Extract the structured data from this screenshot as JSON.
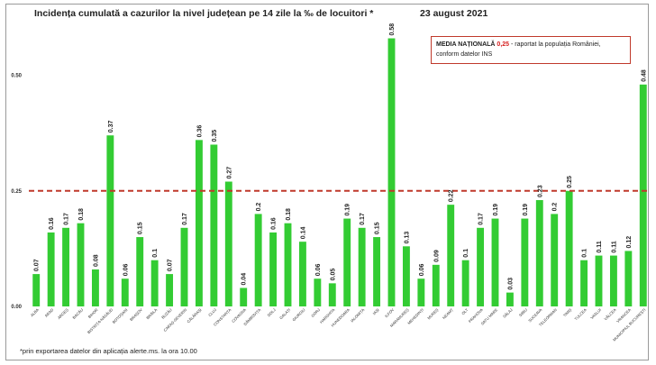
{
  "header": {
    "title": "Incidența cumulată a cazurilor la nivel județean pe 14 zile la ‰ de locuitori *",
    "date": "23 august 2021"
  },
  "note": {
    "label": "MEDIA NAȚIONALĂ",
    "value": "0,25",
    "text1": " - raportat la populația României,",
    "text2": "conform datelor INS"
  },
  "footnote": "*prin exportarea datelor din aplicația alerte.ms. la ora 10.00",
  "colors": {
    "bar": "#33cc33",
    "reference": "#c0392b"
  },
  "chart_data": {
    "type": "bar",
    "categories": [
      "ALBA",
      "ARAD",
      "ARGEȘ",
      "BACĂU",
      "BIHOR",
      "BISTRIȚA-NĂSĂUD",
      "BOTOȘANI",
      "BRAȘOV",
      "BRĂILA",
      "BUZĂU",
      "CARAȘ-SEVERIN",
      "CĂLĂRAȘI",
      "CLUJ",
      "CONSTANȚA",
      "COVASNA",
      "DÂMBOVIȚA",
      "DOLJ",
      "GALAȚI",
      "GIURGIU",
      "GORJ",
      "HARGHITA",
      "HUNEDOARA",
      "IALOMIȚA",
      "IAȘI",
      "ILFOV",
      "MARAMUREȘ",
      "MEHEDINȚI",
      "MUREȘ",
      "NEAMȚ",
      "OLT",
      "PRAHOVA",
      "SATU MARE",
      "SĂLAJ",
      "SIBIU",
      "SUCEAVA",
      "TELEORMAN",
      "TIMIȘ",
      "TULCEA",
      "VASLUI",
      "VÂLCEA",
      "VRANCEA",
      "MUNICIPIUL BUCUREȘTI"
    ],
    "values": [
      0.07,
      0.16,
      0.17,
      0.18,
      0.08,
      0.37,
      0.06,
      0.15,
      0.1,
      0.07,
      0.17,
      0.36,
      0.35,
      0.27,
      0.04,
      0.2,
      0.16,
      0.18,
      0.14,
      0.06,
      0.05,
      0.19,
      0.17,
      0.15,
      0.58,
      0.13,
      0.06,
      0.09,
      0.22,
      0.1,
      0.17,
      0.19,
      0.03,
      0.19,
      0.23,
      0.2,
      0.25,
      0.1,
      0.11,
      0.11,
      0.12,
      0.48
    ],
    "value_labels": [
      "0.07",
      "0.16",
      "0.17",
      "0.18",
      "0.08",
      "0.37",
      "0.06",
      "0.15",
      "0.1",
      "0.07",
      "0.17",
      "0.36",
      "0.35",
      "0.27",
      "0.04",
      "0.2",
      "0.16",
      "0.18",
      "0.14",
      "0.06",
      "0.05",
      "0.19",
      "0.17",
      "0.15",
      "0.58",
      "0.13",
      "0.06",
      "0.09",
      "0.22",
      "0.1",
      "0.17",
      "0.19",
      "0.03",
      "0.19",
      "0.23",
      "0.2",
      "0.25",
      "0.1",
      "0.11",
      "0.11",
      "0.12",
      "0.48"
    ],
    "yticks": [
      0,
      0.25,
      0.5
    ],
    "ytick_labels": [
      "0.00",
      "0.25",
      "0.50"
    ],
    "ylim": [
      0,
      0.62
    ],
    "reference_line": 0.25,
    "title": "Incidența cumulată a cazurilor la nivel județean pe 14 zile la ‰ de locuitori *",
    "xlabel": "",
    "ylabel": "",
    "grid": false,
    "legend": "none"
  }
}
